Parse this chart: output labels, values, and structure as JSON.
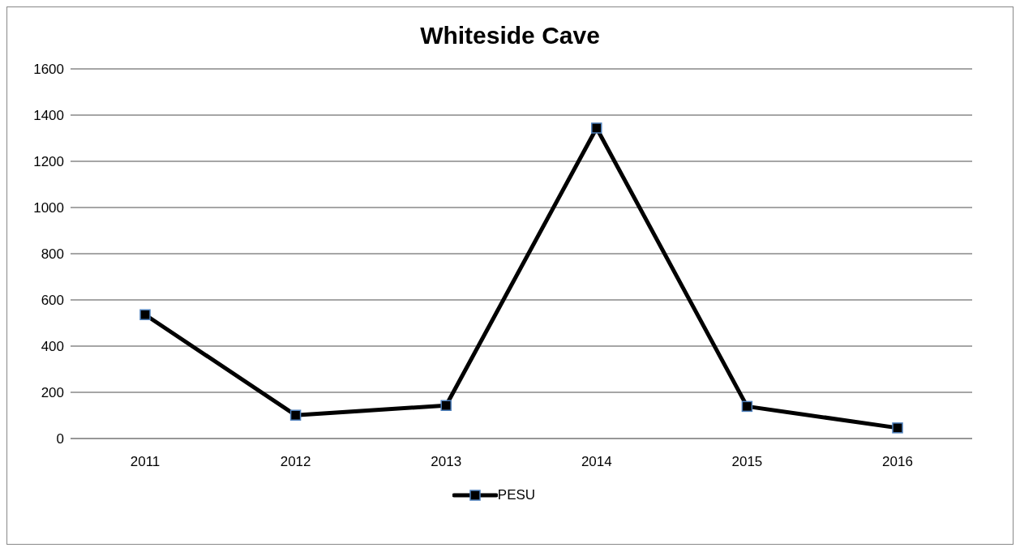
{
  "chart_data": {
    "type": "line",
    "title": "Whiteside Cave",
    "categories": [
      "2011",
      "2012",
      "2013",
      "2014",
      "2015",
      "2016"
    ],
    "series": [
      {
        "name": "PESU",
        "color": "#000000",
        "values": [
          536,
          101,
          143,
          1344,
          139,
          46
        ]
      }
    ],
    "ylim": [
      0,
      1600
    ],
    "yticks": [
      0,
      200,
      400,
      600,
      800,
      1000,
      1200,
      1400,
      1600
    ],
    "grid": "y",
    "legend": "bottom",
    "marker": "square",
    "line_style": "solid"
  }
}
